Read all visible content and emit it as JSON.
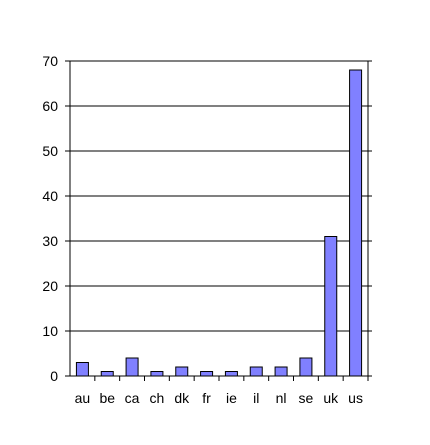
{
  "chart_data": {
    "type": "bar",
    "categories": [
      "au",
      "be",
      "ca",
      "ch",
      "dk",
      "fr",
      "ie",
      "il",
      "nl",
      "se",
      "uk",
      "us"
    ],
    "values": [
      3,
      1,
      4,
      1,
      2,
      1,
      1,
      2,
      2,
      4,
      31,
      68
    ],
    "title": "",
    "xlabel": "",
    "ylabel": "",
    "ylim": [
      0,
      70
    ],
    "yticks": [
      "0",
      "10",
      "20",
      "30",
      "40",
      "50",
      "60",
      "70"
    ],
    "grid": true,
    "legend": "none",
    "colors": {
      "bar_fill": "#8080ff",
      "bar_stroke": "#000000",
      "grid": "#000000",
      "axis": "#000000"
    }
  }
}
